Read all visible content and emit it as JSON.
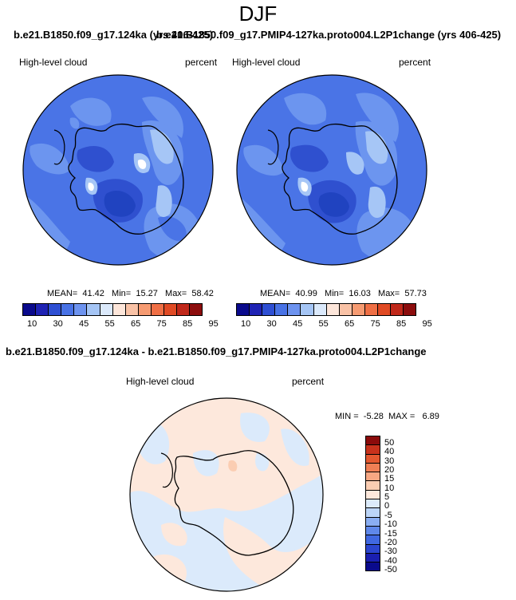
{
  "page": {
    "season": "DJF",
    "top_header_left": "b.e21.B1850.f09_g17.124ka (yrs 406-425)",
    "top_header_right": "b.e21.B1850.f09_g17.PMIP4-127ka.proto004.L2P1change (yrs 406-425)",
    "diff_header": "b.e21.B1850.f09_g17.124ka - b.e21.B1850.f09_g17.PMIP4-127ka.proto004.L2P1change"
  },
  "panels": [
    {
      "variable": "High-level cloud",
      "units": "percent",
      "mean_label": "MEAN=",
      "mean": "41.42",
      "min_label": "Min=",
      "min": "15.27",
      "max_label": "Max=",
      "max": "58.42"
    },
    {
      "variable": "High-level cloud",
      "units": "percent",
      "mean_label": "MEAN=",
      "mean": "40.99",
      "min_label": "Min=",
      "min": "16.03",
      "max_label": "Max=",
      "max": "57.73"
    }
  ],
  "diff_panel": {
    "variable": "High-level cloud",
    "units": "percent",
    "min_label": "MIN =",
    "min": "-5.28",
    "max_label": "MAX =",
    "max": "6.89"
  },
  "colorbar_abs": {
    "colors": [
      "#0a0a8c",
      "#1f23b4",
      "#2e4fd3",
      "#4872e5",
      "#6d93ef",
      "#a5c5f5",
      "#dbe9fb",
      "#fde6da",
      "#f9c2a6",
      "#f69b72",
      "#ef6f45",
      "#e04a24",
      "#c0281a",
      "#8c0d0d"
    ],
    "tick_labels": [
      "10",
      "30",
      "45",
      "55",
      "65",
      "75",
      "85",
      "95"
    ]
  },
  "colorbar_diff": {
    "colors": [
      "#0a0a8c",
      "#1a1fb0",
      "#2b45cf",
      "#4068e1",
      "#5f88ea",
      "#8aaef2",
      "#bcd5f7",
      "#dcebfb",
      "#fde8dc",
      "#fbcdb2",
      "#f7a783",
      "#f07f55",
      "#e45830",
      "#c8321c",
      "#8b0b0b"
    ],
    "tick_labels": [
      "50",
      "40",
      "30",
      "20",
      "15",
      "10",
      "5",
      "0",
      "-5",
      "-10",
      "-15",
      "-20",
      "-30",
      "-40",
      "-50"
    ]
  },
  "map_colors": {
    "ocean_base": "#4a74e6",
    "darker": "#2f50cf",
    "lighter": "#6c95ef",
    "lightest": "#a6c6f6",
    "white": "#ffffff",
    "diff_pos": "#fde8dc",
    "diff_neg": "#dbeafb"
  }
}
